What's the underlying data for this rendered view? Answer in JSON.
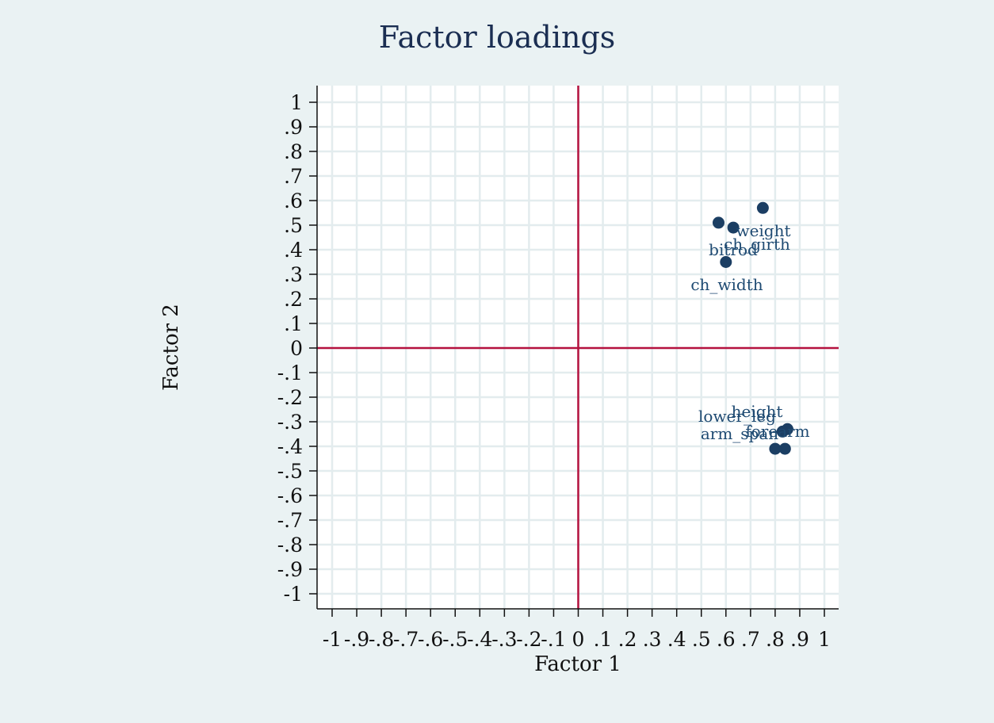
{
  "chart_data": {
    "type": "scatter",
    "title": "Factor loadings",
    "xlabel": "Factor 1",
    "ylabel": "Factor 2",
    "xlim": [
      -1,
      1
    ],
    "ylim": [
      -1,
      1
    ],
    "grid": true,
    "reference_lines": {
      "x": 0,
      "y": 0
    },
    "xticks": [
      "-1",
      "-.9",
      "-.8",
      "-.7",
      "-.6",
      "-.5",
      "-.4",
      "-.3",
      "-.2",
      "-.1",
      "0",
      ".1",
      ".2",
      ".3",
      ".4",
      ".5",
      ".6",
      ".7",
      ".8",
      ".9",
      "1"
    ],
    "yticks": [
      "1",
      ".9",
      ".8",
      ".7",
      ".6",
      ".5",
      ".4",
      ".3",
      ".2",
      ".1",
      "0",
      "-.1",
      "-.2",
      "-.3",
      "-.4",
      "-.5",
      "-.6",
      "-.7",
      "-.8",
      "-.9",
      "-1"
    ],
    "points": [
      {
        "label": "weight",
        "x": 0.75,
        "y": 0.57,
        "label_pos": "below"
      },
      {
        "label": "ch_girth",
        "x": 0.63,
        "y": 0.49,
        "label_pos": "below-right"
      },
      {
        "label": "bitrod",
        "x": 0.57,
        "y": 0.51,
        "label_pos": "below-right"
      },
      {
        "label": "ch_width",
        "x": 0.6,
        "y": 0.35,
        "label_pos": "below"
      },
      {
        "label": "height",
        "x": 0.85,
        "y": -0.33,
        "label_pos": "above-left"
      },
      {
        "label": "lower_leg",
        "x": 0.83,
        "y": -0.34,
        "label_pos": "above-left"
      },
      {
        "label": "forearm",
        "x": 0.84,
        "y": -0.41,
        "label_pos": "above"
      },
      {
        "label": "arm_span",
        "x": 0.8,
        "y": -0.41,
        "label_pos": "above-left"
      }
    ]
  },
  "colors": {
    "background": "#eaf2f3",
    "plot_background": "#ffffff",
    "grid": "#e3ecee",
    "reference_line": "#b5123f",
    "marker": "#1b3e63",
    "label": "#1e4a72",
    "title": "#1b2e52"
  }
}
